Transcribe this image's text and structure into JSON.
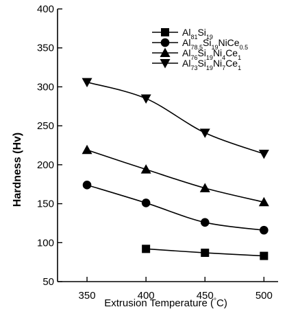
{
  "chart_data": {
    "type": "line",
    "title": "",
    "xlabel": "Extrusion Temperature (°C)",
    "ylabel": "Hardness (Hv)",
    "xlim": [
      325,
      512
    ],
    "ylim": [
      50,
      400
    ],
    "xticks": [
      350,
      400,
      450,
      500
    ],
    "yticks": [
      50,
      100,
      150,
      200,
      250,
      300,
      350,
      400
    ],
    "grid": false,
    "legend_position": "top-right",
    "series": [
      {
        "name": "Al81Si19",
        "name_parts": [
          {
            "t": "Al",
            "sub": false
          },
          {
            "t": "81",
            "sub": true
          },
          {
            "t": "Si",
            "sub": false
          },
          {
            "t": "19",
            "sub": true
          }
        ],
        "marker": "square",
        "x": [
          400,
          450,
          500
        ],
        "y": [
          92,
          87,
          83
        ]
      },
      {
        "name": "Al78.5Si19NiCe0.5",
        "name_parts": [
          {
            "t": "Al",
            "sub": false
          },
          {
            "t": "78.5",
            "sub": true
          },
          {
            "t": "Si",
            "sub": false
          },
          {
            "t": "19",
            "sub": true
          },
          {
            "t": "NiCe",
            "sub": false
          },
          {
            "t": "0.5",
            "sub": true
          }
        ],
        "marker": "circle",
        "x": [
          350,
          400,
          450,
          500
        ],
        "y": [
          174,
          151,
          126,
          116
        ]
      },
      {
        "name": "Al76Si19Ni4Ce1",
        "name_parts": [
          {
            "t": "Al",
            "sub": false
          },
          {
            "t": "76",
            "sub": true
          },
          {
            "t": "Si",
            "sub": false
          },
          {
            "t": "19",
            "sub": true
          },
          {
            "t": "Ni",
            "sub": false
          },
          {
            "t": "4",
            "sub": true
          },
          {
            "t": "Ce",
            "sub": false
          },
          {
            "t": "1",
            "sub": true
          }
        ],
        "marker": "triangle-up",
        "x": [
          350,
          400,
          450,
          500
        ],
        "y": [
          219,
          194,
          170,
          152
        ]
      },
      {
        "name": "Al73Si19Ni7Ce1",
        "name_parts": [
          {
            "t": "Al",
            "sub": false
          },
          {
            "t": "73",
            "sub": true
          },
          {
            "t": "Si",
            "sub": false
          },
          {
            "t": "19",
            "sub": true
          },
          {
            "t": "Ni",
            "sub": false
          },
          {
            "t": "7",
            "sub": true
          },
          {
            "t": "Ce",
            "sub": false
          },
          {
            "t": "1",
            "sub": true
          }
        ],
        "marker": "triangle-down",
        "x": [
          350,
          400,
          450,
          500
        ],
        "y": [
          306,
          285,
          241,
          214
        ]
      }
    ]
  }
}
